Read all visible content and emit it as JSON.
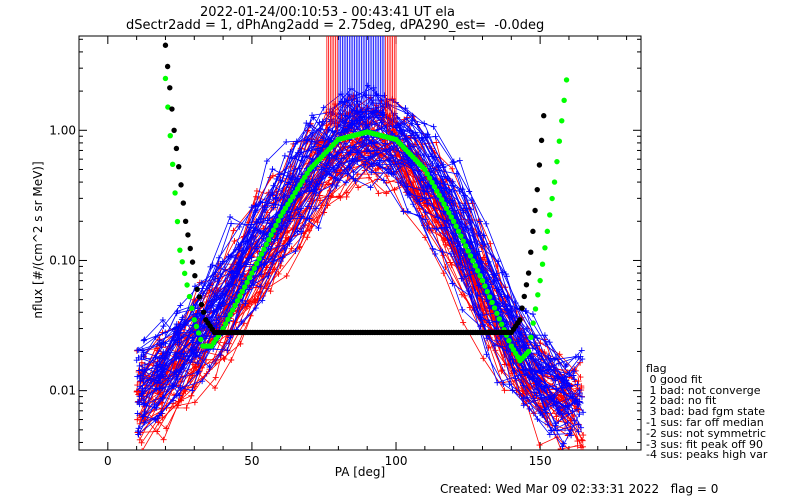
{
  "header": {
    "title_line1": "2022-01-24/00:10:53 - 00:43:41 UT ela",
    "title_line2": "dSectr2add = 1, dPhAng2add = 2.75deg, dPA290_est=  -0.0deg"
  },
  "footer": {
    "created": "Created: Wed Mar 09 02:33:31 2022",
    "flag": "flag = 0"
  },
  "legend": {
    "title": "flag",
    "items": [
      " 0 good fit",
      " 1 bad: not converge",
      " 2 bad: no fit",
      " 3 bad: bad fgm state",
      "-1 sus: far off median",
      "-2 sus: not symmetric",
      "-3 sus: fit peak off 90",
      "-4 sus: peaks high var"
    ]
  },
  "chart_data": {
    "type": "line",
    "title": "",
    "xlabel": "PA [deg]",
    "ylabel": "nflux [#/(cm^2 s sr MeV)]",
    "xlim": [
      -10,
      185
    ],
    "ylim": [
      0.0035,
      5.3
    ],
    "yscale": "log",
    "xticks": [
      0,
      50,
      100,
      150
    ],
    "xtick_labels": [
      "0",
      "50",
      "100",
      "150"
    ],
    "yticks": [
      0.01,
      0.1,
      1.0
    ],
    "ytick_labels": [
      "0.01",
      "0.10",
      "1.00"
    ],
    "grid": false,
    "colors": {
      "red": "#ff0000",
      "blue": "#0000ff",
      "green": "#00ff00",
      "black": "#000000"
    },
    "series": [
      {
        "color": "#ff0000",
        "style": "line+plus",
        "x": [
          10,
          20,
          30,
          40,
          50,
          60,
          70,
          80,
          90,
          100,
          110,
          120,
          130,
          140,
          150,
          160,
          165
        ],
        "y": [
          0.008,
          0.012,
          0.02,
          0.04,
          0.09,
          0.18,
          0.38,
          0.7,
          0.85,
          0.7,
          0.38,
          0.16,
          0.06,
          0.02,
          0.01,
          0.008,
          0.007
        ]
      },
      {
        "color": "#0000ff",
        "style": "line+plus",
        "x": [
          10,
          20,
          30,
          40,
          50,
          60,
          70,
          80,
          90,
          100,
          110,
          120,
          130,
          140,
          150,
          160,
          165
        ],
        "y": [
          0.01,
          0.016,
          0.025,
          0.05,
          0.12,
          0.25,
          0.5,
          0.85,
          0.95,
          0.85,
          0.5,
          0.22,
          0.08,
          0.025,
          0.012,
          0.009,
          0.008
        ]
      },
      {
        "color": "#00ff00",
        "style": "dotted-fit",
        "x": [
          20,
          25,
          30,
          33,
          36,
          40,
          50,
          60,
          70,
          80,
          90,
          100,
          110,
          120,
          130,
          140,
          143,
          146,
          150,
          155,
          160
        ],
        "y": [
          2.5,
          0.12,
          0.035,
          0.022,
          0.022,
          0.03,
          0.08,
          0.22,
          0.5,
          0.85,
          0.97,
          0.85,
          0.5,
          0.2,
          0.07,
          0.022,
          0.017,
          0.02,
          0.07,
          0.4,
          3.5
        ]
      },
      {
        "color": "#000000",
        "style": "dotted-fit",
        "x": [
          20,
          23,
          27,
          31,
          34,
          37,
          140,
          143,
          146,
          149,
          152,
          150
        ],
        "y": [
          4.5,
          1.0,
          0.2,
          0.06,
          0.035,
          0.028,
          0.028,
          0.035,
          0.08,
          0.35,
          2.0,
          1.0
        ]
      }
    ]
  }
}
